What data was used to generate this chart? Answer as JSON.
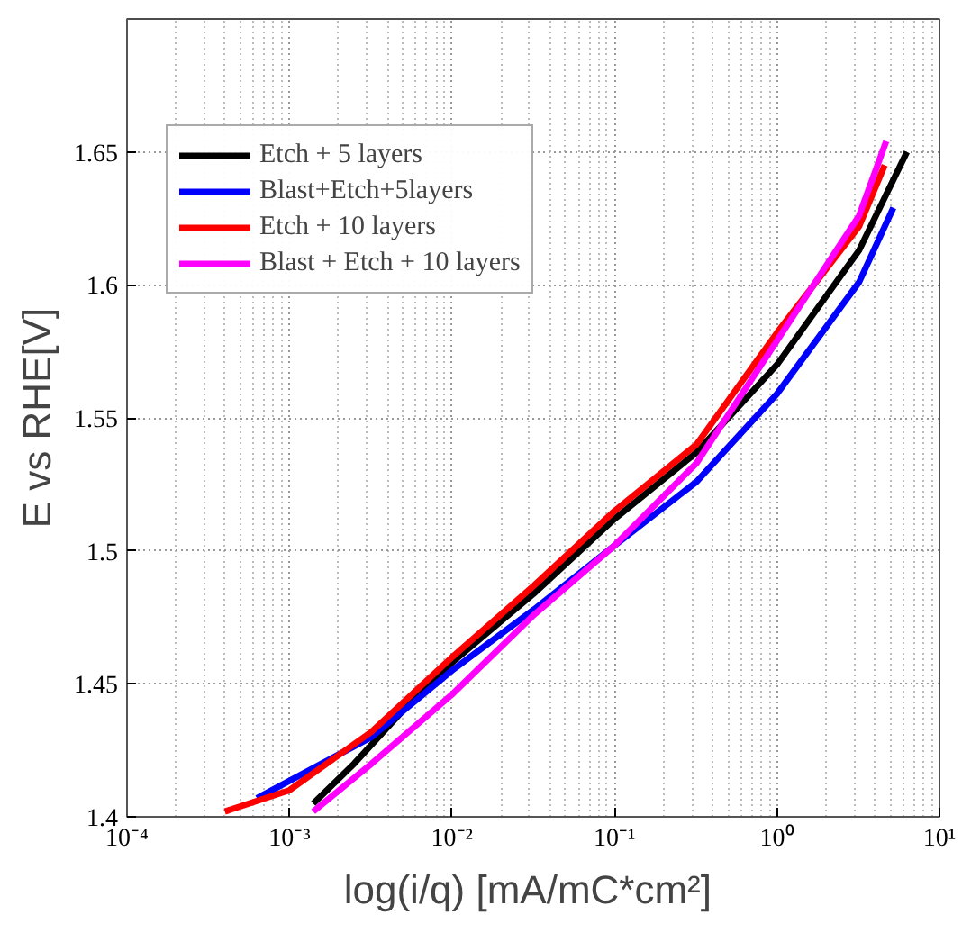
{
  "chart_data": {
    "type": "line",
    "xlabel": "log(i/q)  [mA/mC*cm²]",
    "ylabel": "E vs RHE[V]",
    "log": "x",
    "grid": true,
    "legend": "top left",
    "marker": "none",
    "line_style": "solid",
    "xlim": [
      0.0001,
      10
    ],
    "ylim": [
      1.4,
      1.7
    ],
    "xticks": [
      {
        "value": 0.0001,
        "label": "10⁻⁴"
      },
      {
        "value": 0.001,
        "label": "10⁻³"
      },
      {
        "value": 0.01,
        "label": "10⁻²"
      },
      {
        "value": 0.1,
        "label": "10⁻¹"
      },
      {
        "value": 1,
        "label": "10⁰"
      },
      {
        "value": 10,
        "label": "10¹"
      }
    ],
    "yticks": [
      1.4,
      1.45,
      1.5,
      1.55,
      1.6,
      1.65
    ],
    "series": [
      {
        "name": "Etch + 5 layers",
        "color": "#000000",
        "x": [
          0.0014,
          0.0025,
          0.005,
          0.01,
          0.032,
          0.1,
          0.32,
          1,
          3.2,
          6.3
        ],
        "values": [
          1.405,
          1.42,
          1.44,
          1.458,
          1.484,
          1.512,
          1.537,
          1.57,
          1.613,
          1.65
        ]
      },
      {
        "name": "Blast+Etch+5layers",
        "color": "#0000ff",
        "x": [
          0.00063,
          0.0032,
          0.01,
          0.032,
          0.1,
          0.32,
          1,
          3.2,
          5.2
        ],
        "values": [
          1.407,
          1.43,
          1.455,
          1.478,
          1.502,
          1.526,
          1.559,
          1.601,
          1.629
        ]
      },
      {
        "name": "Etch + 10 layers",
        "color": "#ff0000",
        "x": [
          0.0004,
          0.001,
          0.0032,
          0.01,
          0.032,
          0.1,
          0.32,
          1,
          3.2,
          4.6
        ],
        "values": [
          1.402,
          1.41,
          1.432,
          1.46,
          1.487,
          1.515,
          1.54,
          1.582,
          1.622,
          1.645
        ]
      },
      {
        "name": "Blast + Etch + 10 layers",
        "color": "#ff00ff",
        "x": [
          0.0014,
          0.0032,
          0.01,
          0.032,
          0.1,
          0.32,
          1,
          3.2,
          4.7
        ],
        "values": [
          1.402,
          1.42,
          1.446,
          1.476,
          1.502,
          1.533,
          1.579,
          1.626,
          1.654
        ]
      }
    ]
  }
}
